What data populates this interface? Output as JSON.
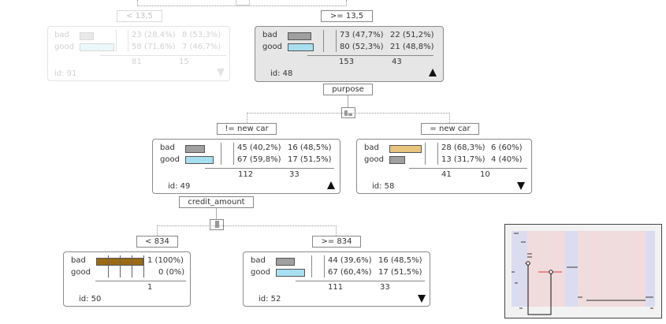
{
  "colors": {
    "bad": "#a0a0a0",
    "good": "#a6e0f0",
    "purpose_bad": "#e8c47e",
    "pure_bad": "#9b6a14"
  },
  "top_split": {
    "left_label": "< 13,5",
    "right_label": ">= 13,5"
  },
  "node91": {
    "bad_label": "bad",
    "good_label": "good",
    "bad_a": "23 (28,4%)",
    "bad_b": "8 (53,3%)",
    "good_a": "58 (71,6%)",
    "good_b": "7 (46,7%)",
    "total_a": "81",
    "total_b": "15",
    "id": "id: 91"
  },
  "node48": {
    "bad_label": "bad",
    "good_label": "good",
    "bad_a": "73 (47,7%)",
    "bad_b": "22 (51,2%)",
    "good_a": "80 (52,3%)",
    "good_b": "21 (48,8%)",
    "total_a": "153",
    "total_b": "43",
    "id": "id: 48"
  },
  "split_purpose": "purpose",
  "cond49": "!= new car",
  "cond58": "= new car",
  "node49": {
    "bad_label": "bad",
    "good_label": "good",
    "bad_a": "45 (40,2%)",
    "bad_b": "16 (48,5%)",
    "good_a": "67 (59,8%)",
    "good_b": "17 (51,5%)",
    "total_a": "112",
    "total_b": "33",
    "id": "id: 49"
  },
  "node58": {
    "bad_label": "bad",
    "good_label": "good",
    "bad_a": "28 (68,3%)",
    "bad_b": "6 (60%)",
    "good_a": "13 (31,7%)",
    "good_b": "4 (40%)",
    "total_a": "41",
    "total_b": "10",
    "id": "id: 58"
  },
  "split_credit": "credit_amount",
  "cond50": "< 834",
  "cond52": ">= 834",
  "node50": {
    "bad_label": "bad",
    "good_label": "good",
    "bad_a": "1 (100%)",
    "good_a": "0 (0%)",
    "total_a": "1",
    "id": "id: 50"
  },
  "node52": {
    "bad_label": "bad",
    "good_label": "good",
    "bad_a": "44 (39,6%)",
    "bad_b": "16 (48,5%)",
    "good_a": "67 (60,4%)",
    "good_b": "17 (51,5%)",
    "total_a": "111",
    "total_b": "33",
    "id": "id: 52"
  }
}
